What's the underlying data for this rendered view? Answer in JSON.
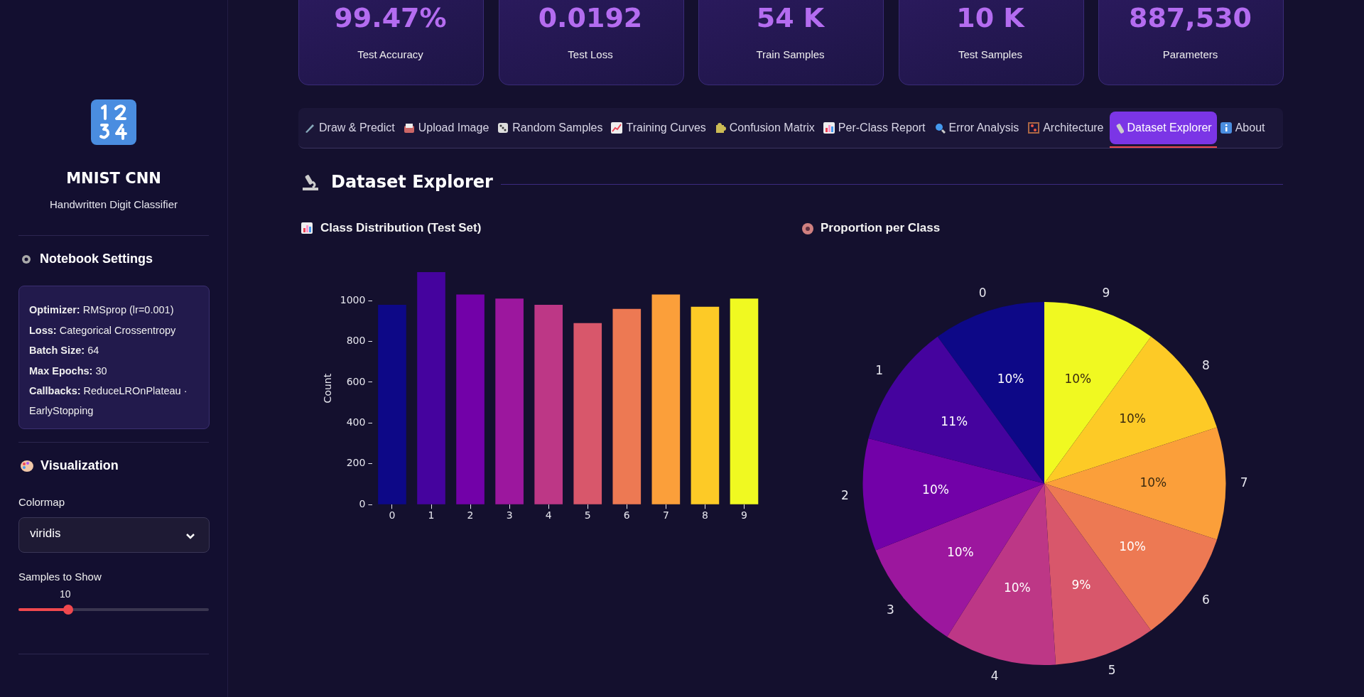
{
  "chart_data": [
    {
      "type": "other",
      "title": "MNIST CNN",
      "subtitle": "Handwritten Digit Classifier",
      "annotations": [
        "Notebook Settings",
        "Optimizer: RMSprop (lr=0.001)",
        "Loss: Categorical Crossentropy",
        "Batch Size: 64",
        "Max Epochs: 30",
        "Callbacks: ReduceLROnPlateau · EarlyStopping",
        "Visualization",
        "Colormap",
        "viridis",
        "Samples to Show",
        "10"
      ]
    },
    {
      "type": "other",
      "annotations": [
        "99.47%",
        "Test Accuracy",
        "0.0192",
        "Test Loss",
        "54 K",
        "Train Samples",
        "10 K",
        "Test Samples",
        "887,530",
        "Parameters"
      ]
    },
    {
      "type": "other",
      "title": "Dataset Explorer",
      "annotations": [
        "Draw & Predict",
        "Upload Image",
        "Random Samples",
        "Training Curves",
        "Confusion Matrix",
        "Per-Class Report",
        "Error Analysis",
        "Architecture",
        "Dataset Explorer",
        "About"
      ]
    },
    {
      "type": "bar",
      "title": "Class Distribution (Test Set)",
      "ylabel": "Count",
      "categories": [
        "0",
        "1",
        "2",
        "3",
        "4",
        "5",
        "6",
        "7",
        "8",
        "9"
      ],
      "values": [
        980,
        1140,
        1030,
        1010,
        980,
        890,
        960,
        1030,
        970,
        1010
      ],
      "colors": [
        "#0d0887",
        "#45039e",
        "#7201a8",
        "#9c179e",
        "#bd3786",
        "#d8576b",
        "#ed7953",
        "#fb9f3a",
        "#fdca26",
        "#f0f921"
      ],
      "ylim": [
        0,
        1140
      ],
      "yticks": [
        0,
        200,
        400,
        600,
        800,
        1000
      ]
    },
    {
      "type": "pie",
      "title": "Proportion per Class",
      "categories": [
        "0",
        "1",
        "2",
        "3",
        "4",
        "5",
        "6",
        "7",
        "8",
        "9"
      ],
      "values": [
        10,
        11,
        10,
        10,
        10,
        9,
        10,
        10,
        10,
        10
      ],
      "colors": [
        "#0d0887",
        "#45039e",
        "#7201a8",
        "#9c179e",
        "#bd3786",
        "#d8576b",
        "#ed7953",
        "#fb9f3a",
        "#fdca26",
        "#f0f921"
      ],
      "value_labels": [
        "10%",
        "11%",
        "10%",
        "10%",
        "10%",
        "9%",
        "10%",
        "10%",
        "10%",
        "10%"
      ]
    }
  ]
}
